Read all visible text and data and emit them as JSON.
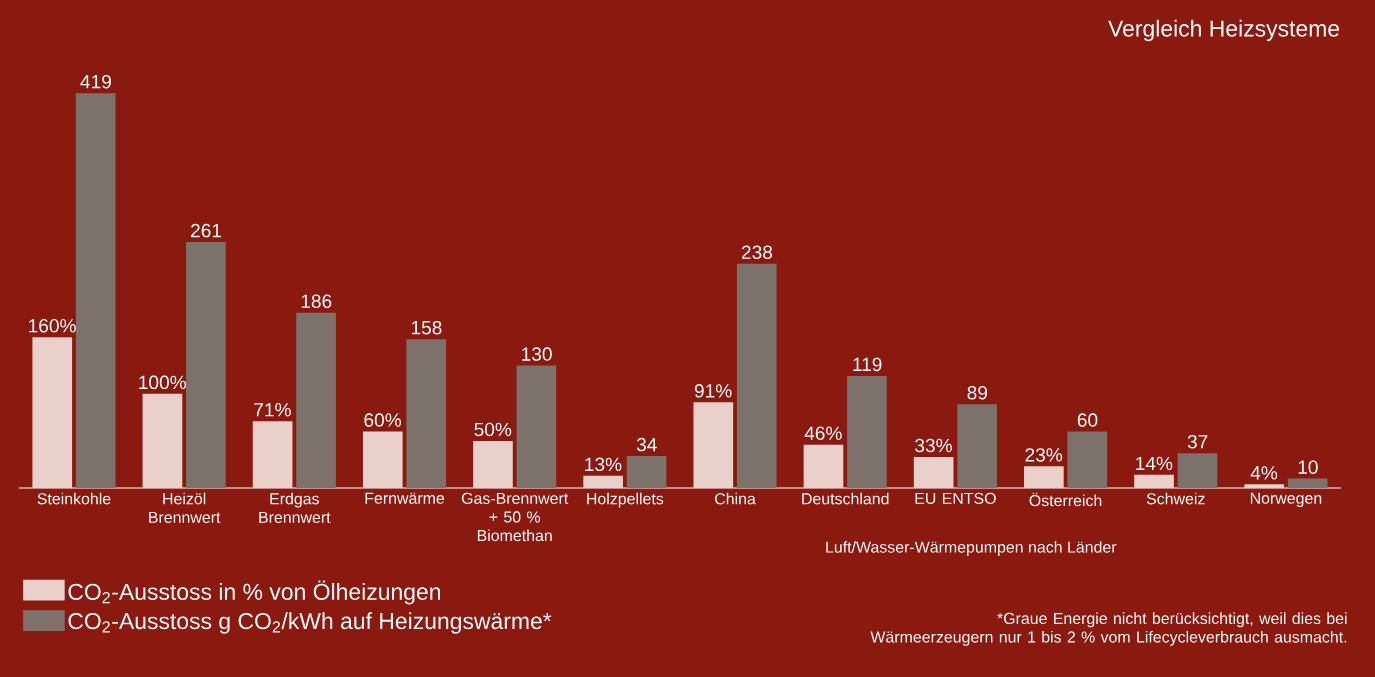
{
  "chart_data": {
    "type": "bar",
    "title": "Vergleich Heizsysteme",
    "categories": [
      "Steinkohle",
      "Heizöl Brennwert",
      "Erdgas Brennwert",
      "Fernwärme",
      "Gas-Brennwert + 50 % Biomethan",
      "Holzpellets",
      "China",
      "Deutschland",
      "EU ENTSO",
      "Österreich",
      "Schweiz",
      "Norwegen"
    ],
    "series": [
      {
        "name": "CO$_{2}$-Ausstoss in % von Ölheizungen",
        "color": "#ead0cb",
        "values": [
          160,
          100,
          71,
          60,
          50,
          13,
          91,
          46,
          33,
          23,
          14,
          4
        ],
        "value_labels": [
          "160%",
          "100%",
          "71%",
          "60%",
          "50%",
          "13%",
          "91%",
          "46%",
          "33%",
          "23%",
          "14%",
          "4%"
        ]
      },
      {
        "name": "CO$_{2}$-Ausstoss g CO$_{2}$/kWh auf Heizungswärme*",
        "color": "#7d716b",
        "values": [
          419,
          261,
          186,
          158,
          130,
          34,
          238,
          119,
          89,
          60,
          37,
          10
        ],
        "value_labels": [
          "419",
          "261",
          "186",
          "158",
          "130",
          "34",
          "238",
          "119",
          "89",
          "60",
          "37",
          "10"
        ]
      }
    ],
    "annotations": [
      "Luft/Wasser-Wärmepumpen nach Länder",
      "*Graue Energie nicht berücksichtigt, weil dies bei Wärmeerzeugern nur 1 bis 2 % vom Lifecycleverbrauch ausmacht."
    ],
    "legend": "bottom left",
    "grid": false
  }
}
